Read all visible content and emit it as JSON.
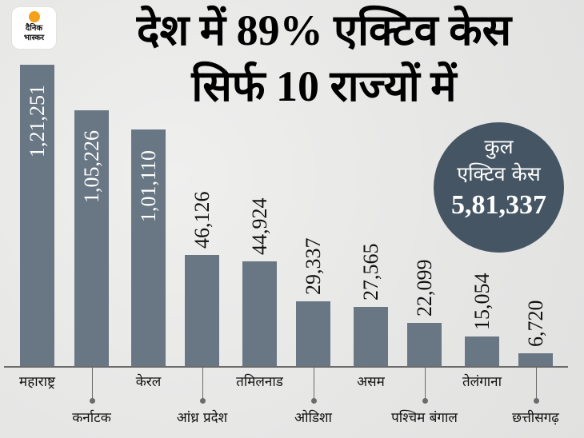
{
  "brand": {
    "logo_line1": "दैनिक",
    "logo_line2": "भास्कर",
    "accent_color": "#f5a019"
  },
  "title": {
    "line1": "देश में 89% एक्टिव केस",
    "line2": "सिर्फ 10 राज्यों में"
  },
  "total": {
    "line1": "कुल",
    "line2": "एक्टिव केस",
    "value": "5,81,337",
    "color": "#455563"
  },
  "bar_color": "#697785",
  "chart_data": {
    "type": "bar",
    "title": "देश में 89% एक्टिव केस सिर्फ 10 राज्यों में",
    "xlabel": "",
    "ylabel": "",
    "grid": false,
    "categories": [
      "महाराष्ट्र",
      "कर्नाटक",
      "केरल",
      "आंध्र प्रदेश",
      "तमिलनाड",
      "ओडिशा",
      "असम",
      "पश्चिम बंगाल",
      "तेलंगाना",
      "छत्तीसगढ़"
    ],
    "values": [
      121251,
      105226,
      101110,
      46126,
      44924,
      29337,
      27565,
      22099,
      15054,
      6720
    ],
    "value_labels": [
      "1,21,251",
      "1,05,226",
      "1,01,110",
      "46,126",
      "44,924",
      "29,337",
      "27,565",
      "22,099",
      "15,054",
      "6,720"
    ],
    "annotation": "कुल एक्टिव केस 5,81,337"
  }
}
